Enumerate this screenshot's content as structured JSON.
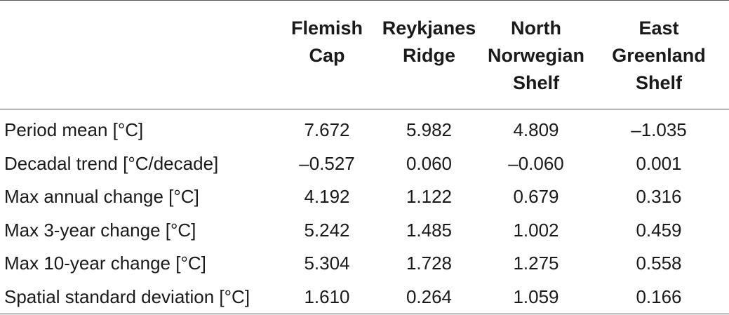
{
  "table": {
    "columns": [
      "",
      "Flemish Cap",
      "Reykjanes Ridge",
      "North Norwegian Shelf",
      "East Greenland Shelf"
    ],
    "header_lines": [
      [],
      [
        "Flemish",
        "Cap"
      ],
      [
        "Reykjanes",
        "Ridge"
      ],
      [
        "North",
        "Norwegian",
        "Shelf"
      ],
      [
        "East",
        "Greenland",
        "Shelf"
      ]
    ],
    "rows": [
      {
        "label": "Period mean [°C]",
        "values": [
          "7.672",
          "5.982",
          "4.809",
          "–1.035"
        ]
      },
      {
        "label": "Decadal trend [°C/decade]",
        "values": [
          "–0.527",
          "0.060",
          "–0.060",
          "0.001"
        ]
      },
      {
        "label": "Max annual change [°C]",
        "values": [
          "4.192",
          "1.122",
          "0.679",
          "0.316"
        ]
      },
      {
        "label": "Max 3-year change [°C]",
        "values": [
          "5.242",
          "1.485",
          "1.002",
          "0.459"
        ]
      },
      {
        "label": "Max 10-year change [°C]",
        "values": [
          "5.304",
          "1.728",
          "1.275",
          "0.558"
        ]
      },
      {
        "label": "Spatial standard deviation [°C]",
        "values": [
          "1.610",
          "0.264",
          "1.059",
          "0.166"
        ]
      }
    ]
  }
}
